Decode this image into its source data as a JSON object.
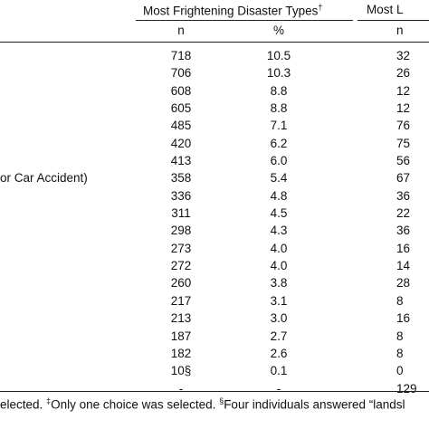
{
  "header": {
    "group1": "Most Frightening Disaster Types",
    "group1_mark": "†",
    "group2": "Most L",
    "col_n": "n",
    "col_pct": "%",
    "col_n2": "n"
  },
  "rows": [
    {
      "label": "",
      "n": "718",
      "pct": "10.5",
      "n2": "32"
    },
    {
      "label": "",
      "n": "706",
      "pct": "10.3",
      "n2": "26"
    },
    {
      "label": "",
      "n": "608",
      "pct": "8.8",
      "n2": "12"
    },
    {
      "label": "",
      "n": "605",
      "pct": "8.8",
      "n2": "12"
    },
    {
      "label": "",
      "n": "485",
      "pct": "7.1",
      "n2": "76"
    },
    {
      "label": "",
      "n": "420",
      "pct": "6.2",
      "n2": "75"
    },
    {
      "label": "",
      "n": "413",
      "pct": "6.0",
      "n2": "56"
    },
    {
      "label": "or Car Accident)",
      "n": "358",
      "pct": "5.4",
      "n2": "67"
    },
    {
      "label": "",
      "n": "336",
      "pct": "4.8",
      "n2": "36"
    },
    {
      "label": "",
      "n": "311",
      "pct": "4.5",
      "n2": "22"
    },
    {
      "label": "",
      "n": "298",
      "pct": "4.3",
      "n2": "36"
    },
    {
      "label": "",
      "n": "273",
      "pct": "4.0",
      "n2": "16"
    },
    {
      "label": "",
      "n": "272",
      "pct": "4.0",
      "n2": "14"
    },
    {
      "label": "",
      "n": "260",
      "pct": "3.8",
      "n2": "28"
    },
    {
      "label": "",
      "n": "217",
      "pct": "3.1",
      "n2": "8"
    },
    {
      "label": "",
      "n": "213",
      "pct": "3.0",
      "n2": "16"
    },
    {
      "label": "",
      "n": "187",
      "pct": "2.7",
      "n2": "8"
    },
    {
      "label": "",
      "n": "182",
      "pct": "2.6",
      "n2": "8"
    },
    {
      "label": "",
      "n": "10§",
      "pct": "0.1",
      "n2": "0"
    },
    {
      "label": "",
      "n": "-",
      "pct": "-",
      "n2": "129"
    }
  ],
  "footnote": {
    "part1": "elected. ",
    "mark2": "‡",
    "part2": "Only one choice was selected. ",
    "mark3": "§",
    "part3": "Four individuals answered “landsl"
  }
}
